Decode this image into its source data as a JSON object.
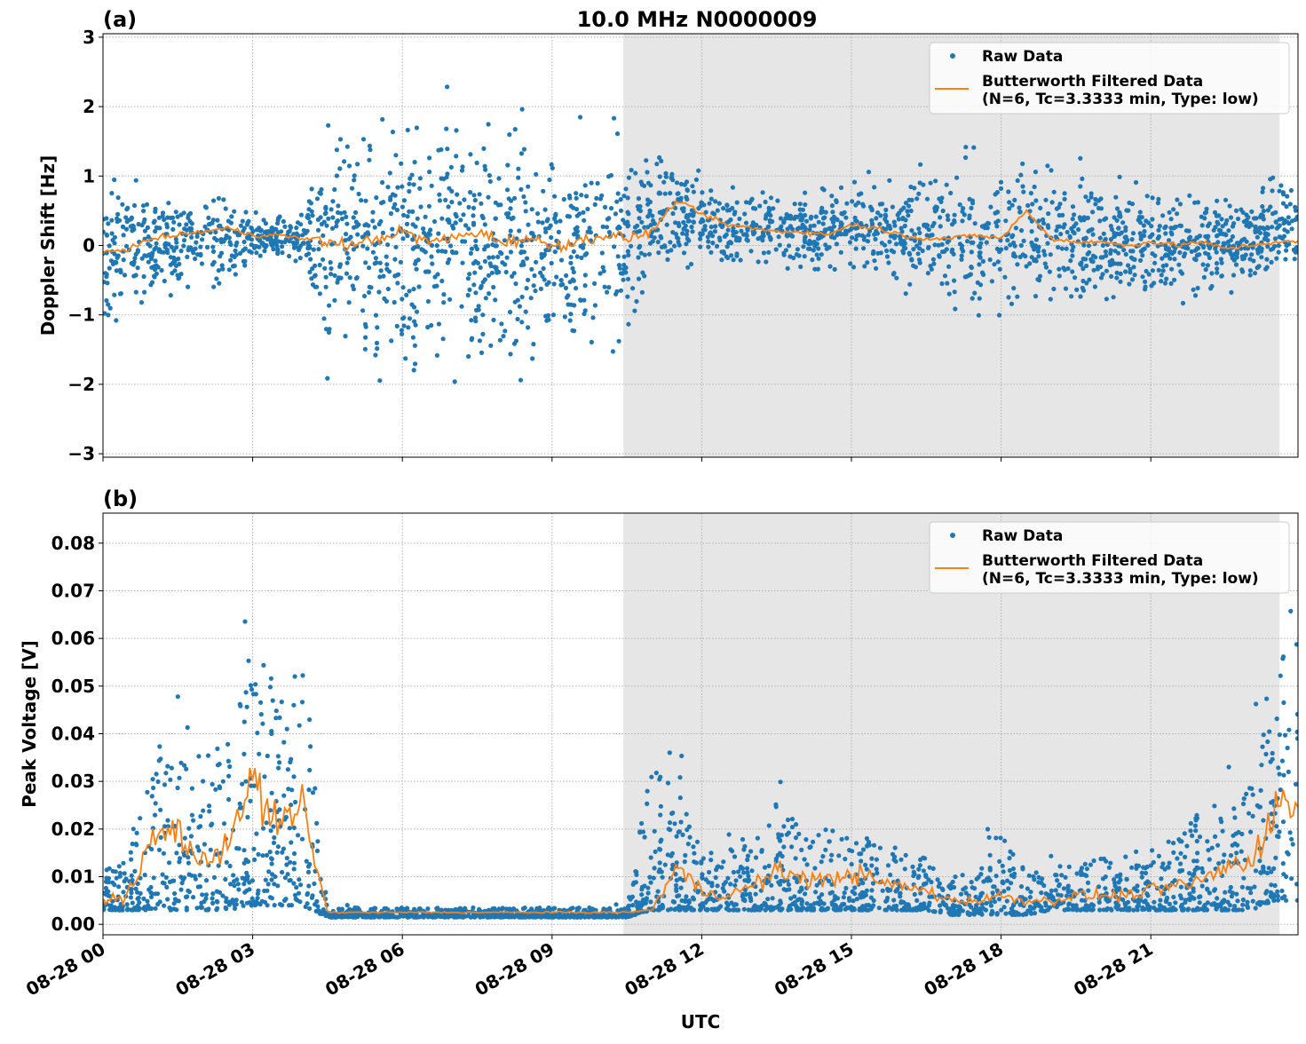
{
  "figure_title": "10.0 MHz N0000009",
  "xlabel": "UTC",
  "x_tick_labels": [
    "08-28 00",
    "08-28 03",
    "08-28 06",
    "08-28 09",
    "08-28 12",
    "08-28 15",
    "08-28 18",
    "08-28 21"
  ],
  "x_tick_hours": [
    0,
    3,
    6,
    9,
    12,
    15,
    18,
    21
  ],
  "xlim_hours": [
    0,
    23.95
  ],
  "colors": {
    "raw": "#1f77b4",
    "filtered": "#ff7f0e",
    "shade": "#e6e6e6",
    "grid": "#b0b0b0"
  },
  "legend": {
    "raw_label": "Raw Data",
    "filtered_label_line1": "Butterworth Filtered Data",
    "filtered_label_line2": "(N=6, Tc=3.3333 min, Type: low)",
    "placement": "top-right"
  },
  "chart_data": [
    {
      "type": "scatter",
      "panel_label": "(a)",
      "ylabel": "Doppler Shift [Hz]",
      "ylim": [
        -3.05,
        3.05
      ],
      "y_ticks": [
        -3,
        -2,
        -1,
        0,
        1,
        2,
        3
      ],
      "y_tick_labels": [
        "−3",
        "−2",
        "−1",
        "0",
        "1",
        "2",
        "3"
      ],
      "grid": true,
      "shaded_span_hours": [
        10.43,
        23.58
      ],
      "x_hours": [
        0,
        0.5,
        1,
        1.5,
        2,
        2.5,
        3,
        3.5,
        4,
        4.5,
        5,
        5.5,
        6,
        6.5,
        7,
        7.5,
        8,
        8.5,
        9,
        9.5,
        10,
        10.5,
        11,
        11.5,
        12,
        12.5,
        13,
        13.5,
        14,
        14.5,
        15,
        15.5,
        16,
        16.5,
        17,
        17.5,
        18,
        18.5,
        19,
        19.5,
        20,
        20.5,
        21,
        21.5,
        22,
        22.5,
        23,
        23.5
      ],
      "series": [
        {
          "name": "Butterworth Filtered Data",
          "kind": "line",
          "values": [
            -0.1,
            -0.05,
            0.1,
            0.15,
            0.2,
            0.25,
            0.15,
            0.15,
            0.1,
            0.05,
            0.0,
            0.1,
            0.2,
            0.05,
            0.1,
            0.2,
            0.05,
            0.1,
            0.0,
            0.05,
            0.15,
            0.1,
            0.2,
            0.65,
            0.45,
            0.3,
            0.25,
            0.2,
            0.2,
            0.15,
            0.3,
            0.25,
            0.15,
            0.1,
            0.1,
            0.15,
            0.1,
            0.5,
            0.1,
            0.05,
            0.05,
            0.0,
            0.05,
            0.0,
            0.05,
            -0.05,
            0.0,
            0.05
          ]
        },
        {
          "name": "Raw Data",
          "kind": "scatter-envelope",
          "lower": [
            -1.1,
            -1.0,
            -0.8,
            -0.7,
            -0.6,
            -0.6,
            -0.3,
            -0.25,
            -0.3,
            -1.7,
            -1.7,
            -1.7,
            -1.7,
            -1.7,
            -1.8,
            -1.8,
            -1.7,
            -1.7,
            -1.6,
            -1.6,
            -1.6,
            -1.6,
            -0.5,
            -0.3,
            -0.3,
            -0.3,
            -0.3,
            -0.3,
            -0.4,
            -0.4,
            -0.3,
            -0.5,
            -0.6,
            -0.7,
            -0.9,
            -1.0,
            -0.9,
            -0.7,
            -0.9,
            -0.9,
            -0.8,
            -0.8,
            -0.8,
            -0.8,
            -0.7,
            -0.6,
            -0.6,
            -0.5
          ],
          "upper": [
            1.0,
            0.9,
            0.8,
            0.7,
            0.8,
            0.7,
            0.5,
            0.45,
            0.4,
            1.6,
            1.7,
            1.7,
            1.7,
            1.8,
            1.8,
            1.8,
            1.7,
            1.7,
            1.6,
            1.7,
            1.7,
            1.7,
            1.2,
            1.2,
            0.9,
            0.8,
            0.8,
            0.8,
            0.8,
            0.9,
            1.0,
            0.9,
            0.9,
            1.0,
            1.1,
            1.2,
            1.2,
            1.3,
            1.1,
            1.1,
            1.0,
            0.9,
            0.9,
            0.9,
            0.8,
            0.8,
            0.8,
            1.0
          ]
        }
      ]
    },
    {
      "type": "scatter",
      "panel_label": "(b)",
      "ylabel": "Peak Voltage [V]",
      "ylim": [
        -0.0022,
        0.0863
      ],
      "y_ticks": [
        0,
        0.01,
        0.02,
        0.03,
        0.04,
        0.05,
        0.06,
        0.07,
        0.08
      ],
      "y_tick_labels": [
        "0.00",
        "0.01",
        "0.02",
        "0.03",
        "0.04",
        "0.05",
        "0.06",
        "0.07",
        "0.08"
      ],
      "grid": true,
      "shaded_span_hours": [
        10.43,
        23.58
      ],
      "x_hours": [
        0,
        0.5,
        1,
        1.5,
        2,
        2.5,
        3,
        3.5,
        4,
        4.5,
        5,
        5.5,
        6,
        6.5,
        7,
        7.5,
        8,
        8.5,
        9,
        9.5,
        10,
        10.5,
        11,
        11.5,
        12,
        12.5,
        13,
        13.5,
        14,
        14.5,
        15,
        15.5,
        16,
        16.5,
        17,
        17.5,
        18,
        18.5,
        19,
        19.5,
        20,
        20.5,
        21,
        21.5,
        22,
        22.5,
        23,
        23.5
      ],
      "series": [
        {
          "name": "Butterworth Filtered Data",
          "kind": "line",
          "values": [
            0.005,
            0.006,
            0.018,
            0.02,
            0.012,
            0.018,
            0.03,
            0.02,
            0.025,
            0.0025,
            0.0025,
            0.0025,
            0.0025,
            0.0025,
            0.0025,
            0.0025,
            0.0025,
            0.0025,
            0.0025,
            0.0025,
            0.0025,
            0.0025,
            0.003,
            0.012,
            0.007,
            0.006,
            0.008,
            0.011,
            0.01,
            0.009,
            0.011,
            0.009,
            0.008,
            0.007,
            0.005,
            0.005,
            0.006,
            0.005,
            0.005,
            0.006,
            0.006,
            0.006,
            0.007,
            0.008,
            0.009,
            0.012,
            0.013,
            0.025
          ]
        },
        {
          "name": "Raw Data",
          "kind": "scatter-envelope",
          "lower": [
            0.003,
            0.003,
            0.003,
            0.003,
            0.003,
            0.003,
            0.004,
            0.004,
            0.004,
            0.0015,
            0.0015,
            0.0015,
            0.0015,
            0.0015,
            0.0015,
            0.0015,
            0.0015,
            0.0015,
            0.0015,
            0.0015,
            0.0015,
            0.0015,
            0.003,
            0.003,
            0.003,
            0.003,
            0.003,
            0.003,
            0.003,
            0.003,
            0.003,
            0.003,
            0.003,
            0.003,
            0.002,
            0.002,
            0.002,
            0.002,
            0.003,
            0.003,
            0.003,
            0.003,
            0.003,
            0.003,
            0.003,
            0.003,
            0.003,
            0.005
          ],
          "upper": [
            0.012,
            0.013,
            0.035,
            0.05,
            0.035,
            0.04,
            0.06,
            0.05,
            0.055,
            0.0035,
            0.0035,
            0.0035,
            0.0035,
            0.0035,
            0.0035,
            0.0035,
            0.0035,
            0.0035,
            0.0035,
            0.0035,
            0.0035,
            0.0035,
            0.035,
            0.03,
            0.015,
            0.015,
            0.02,
            0.025,
            0.022,
            0.02,
            0.02,
            0.018,
            0.016,
            0.014,
            0.01,
            0.011,
            0.02,
            0.012,
            0.012,
            0.013,
            0.014,
            0.015,
            0.016,
            0.018,
            0.025,
            0.025,
            0.03,
            0.06
          ]
        }
      ]
    }
  ]
}
